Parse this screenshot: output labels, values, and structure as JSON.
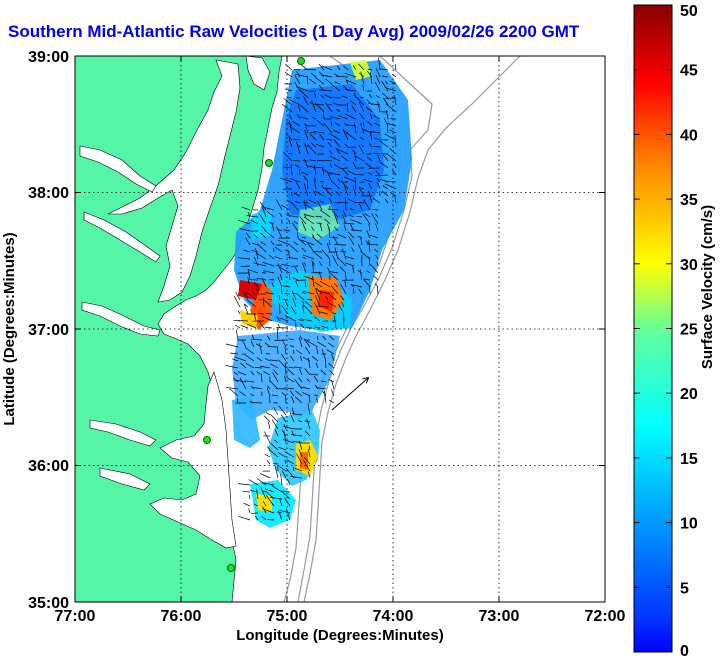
{
  "title": "Southern Mid-Atlantic Raw Velocities (1 Day Avg) 2009/02/26 2200 GMT",
  "map": {
    "xlabel": "Longitude (Degrees:Minutes)",
    "ylabel": "Latitude (Degrees:Minutes)",
    "lon_ticks": [
      "77:00",
      "76:00",
      "75:00",
      "74:00",
      "73:00",
      "72:00"
    ],
    "lat_ticks": [
      "39:00",
      "38:00",
      "37:00",
      "36:00",
      "35:00"
    ],
    "land_color": "#55f5a8",
    "grid": true
  },
  "colorbar": {
    "label": "Surface Velocity (cm/s)",
    "ticks": [
      "50",
      "45",
      "40",
      "35",
      "30",
      "25",
      "20",
      "15",
      "10",
      "5",
      "0"
    ],
    "min": 0,
    "max": 50,
    "colormap": "jet"
  },
  "legend_arrow": {
    "value": 50
  }
}
